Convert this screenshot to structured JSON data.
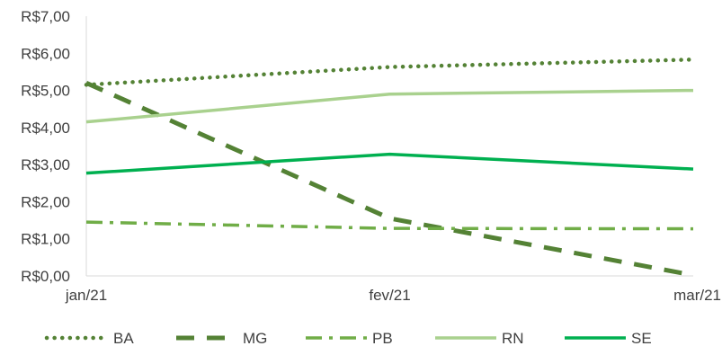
{
  "chart_data": {
    "type": "line",
    "categories": [
      "jan/21",
      "fev/21",
      "mar/21"
    ],
    "ylim": [
      0,
      7
    ],
    "y_ticks": [
      "R$0,00",
      "R$1,00",
      "R$2,00",
      "R$3,00",
      "R$4,00",
      "R$5,00",
      "R$6,00",
      "R$7,00"
    ],
    "grid": false,
    "legend_position": "bottom",
    "series": [
      {
        "name": "BA",
        "values": [
          5.15,
          5.63,
          5.83
        ],
        "color": "#548235",
        "dash": "dotted"
      },
      {
        "name": "MG",
        "values": [
          5.2,
          1.55,
          0.02
        ],
        "color": "#548235",
        "dash": "dashed"
      },
      {
        "name": "PB",
        "values": [
          1.45,
          1.28,
          1.27
        ],
        "color": "#70AD47",
        "dash": "dashdot"
      },
      {
        "name": "RN",
        "values": [
          4.15,
          4.9,
          5.0
        ],
        "color": "#A9D18E",
        "dash": "solid"
      },
      {
        "name": "SE",
        "values": [
          2.77,
          3.28,
          2.88
        ],
        "color": "#00B050",
        "dash": "solid"
      }
    ]
  }
}
